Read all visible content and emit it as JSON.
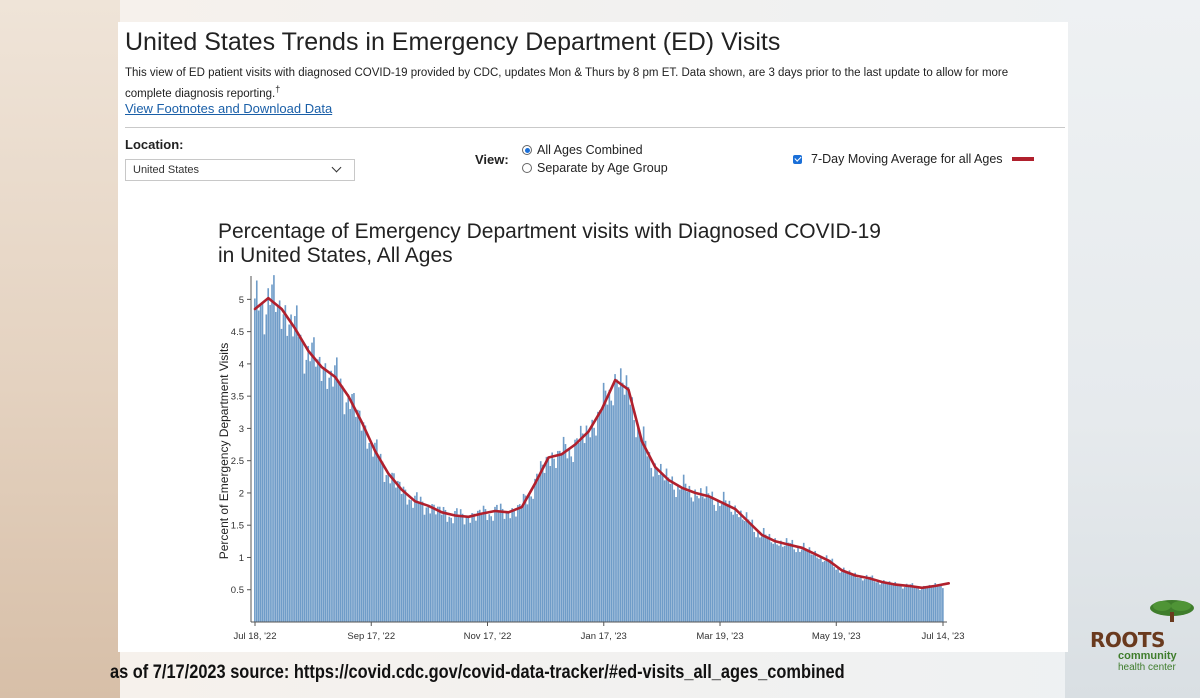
{
  "header": {
    "title": "United States Trends in Emergency Department (ED) Visits",
    "description": "This view of ED patient visits with diagnosed COVID-19 provided by CDC, updates Mon & Thurs by 8 pm ET. Data shown, are 3 days prior to the last update to allow for more complete diagnosis reporting.",
    "footnote_mark": "†",
    "link_label": "View Footnotes and Download Data"
  },
  "controls": {
    "location_label": "Location:",
    "location_value": "United States",
    "view_label": "View:",
    "view_options": [
      "All Ages Combined",
      "Separate by Age Group"
    ],
    "view_selected": "All Ages Combined",
    "moving_average_label": "7-Day Moving Average for all Ages",
    "moving_average_checked": true
  },
  "chart_data": {
    "type": "bar",
    "title": "Percentage of Emergency Department visits with Diagnosed COVID-19 in United States, All Ages",
    "title_lines": [
      "Percentage of Emergency Department visits with Diagnosed COVID-19",
      "in United States, All Ages"
    ],
    "xlabel": "",
    "ylabel": "Percent of Emergency Department Visits",
    "ylim": [
      0,
      5.3
    ],
    "yticks": [
      0.5,
      1,
      1.5,
      2,
      2.5,
      3,
      3.5,
      4,
      4.5,
      5
    ],
    "ytick_labels": [
      "0.5",
      "1",
      "1.5",
      "2",
      "2.5",
      "3",
      "3.5",
      "4",
      "4.5",
      "5"
    ],
    "x_start": "2022-07-18",
    "x_end": "2023-07-14",
    "xticks": [
      "2022-07-18",
      "2022-09-17",
      "2022-11-17",
      "2023-01-17",
      "2023-03-19",
      "2023-05-19",
      "2023-07-14"
    ],
    "xtick_labels": [
      "Jul 18, '22",
      "Sep 17, '22",
      "Nov 17, '22",
      "Jan 17, '23",
      "Mar 19, '23",
      "May 19, '23",
      "Jul 14, '23"
    ],
    "grid": false,
    "bar_color": "#6f9cc8",
    "line_color": "#b0202d",
    "series": [
      {
        "name": "7-Day Moving Average for all Ages",
        "kind": "line",
        "points": [
          [
            "2022-07-18",
            4.85
          ],
          [
            "2022-07-25",
            5.02
          ],
          [
            "2022-08-01",
            4.85
          ],
          [
            "2022-08-08",
            4.55
          ],
          [
            "2022-08-15",
            4.2
          ],
          [
            "2022-08-22",
            3.95
          ],
          [
            "2022-08-29",
            3.8
          ],
          [
            "2022-09-05",
            3.5
          ],
          [
            "2022-09-12",
            3.1
          ],
          [
            "2022-09-19",
            2.65
          ],
          [
            "2022-09-26",
            2.3
          ],
          [
            "2022-10-03",
            2.05
          ],
          [
            "2022-10-10",
            1.87
          ],
          [
            "2022-10-17",
            1.8
          ],
          [
            "2022-10-24",
            1.7
          ],
          [
            "2022-10-31",
            1.65
          ],
          [
            "2022-11-07",
            1.63
          ],
          [
            "2022-11-14",
            1.68
          ],
          [
            "2022-11-21",
            1.72
          ],
          [
            "2022-11-28",
            1.7
          ],
          [
            "2022-12-05",
            1.78
          ],
          [
            "2022-12-12",
            2.15
          ],
          [
            "2022-12-19",
            2.55
          ],
          [
            "2022-12-26",
            2.6
          ],
          [
            "2023-01-02",
            2.75
          ],
          [
            "2023-01-09",
            2.95
          ],
          [
            "2023-01-16",
            3.3
          ],
          [
            "2023-01-23",
            3.75
          ],
          [
            "2023-01-30",
            3.6
          ],
          [
            "2023-02-06",
            2.8
          ],
          [
            "2023-02-13",
            2.4
          ],
          [
            "2023-02-20",
            2.2
          ],
          [
            "2023-02-27",
            2.08
          ],
          [
            "2023-03-06",
            2.0
          ],
          [
            "2023-03-13",
            1.95
          ],
          [
            "2023-03-20",
            1.85
          ],
          [
            "2023-03-27",
            1.75
          ],
          [
            "2023-04-03",
            1.55
          ],
          [
            "2023-04-10",
            1.35
          ],
          [
            "2023-04-17",
            1.25
          ],
          [
            "2023-04-24",
            1.2
          ],
          [
            "2023-05-01",
            1.15
          ],
          [
            "2023-05-08",
            1.05
          ],
          [
            "2023-05-15",
            0.95
          ],
          [
            "2023-05-22",
            0.8
          ],
          [
            "2023-05-29",
            0.72
          ],
          [
            "2023-06-05",
            0.68
          ],
          [
            "2023-06-12",
            0.62
          ],
          [
            "2023-06-19",
            0.58
          ],
          [
            "2023-06-26",
            0.56
          ],
          [
            "2023-07-03",
            0.53
          ],
          [
            "2023-07-10",
            0.56
          ],
          [
            "2023-07-17",
            0.6
          ]
        ]
      }
    ]
  },
  "footer": {
    "source": "as of 7/17/2023 source: https://covid.cdc.gov/covid-data-tracker/#ed-visits_all_ages_combined"
  },
  "logo": {
    "word": "ROOTS",
    "line1": "community",
    "line2": "health center",
    "tree_color": "#3f7d2c",
    "word_color": "#6a3a1e"
  }
}
